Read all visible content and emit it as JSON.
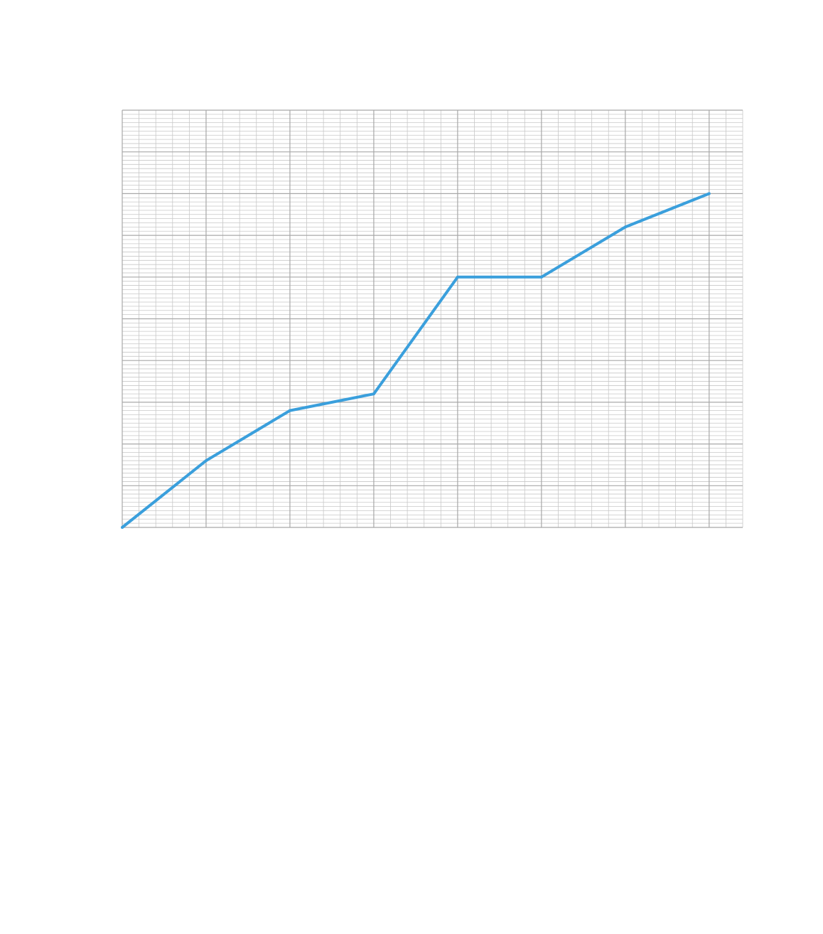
{
  "chart_data": {
    "type": "line",
    "title": "",
    "xlabel": "",
    "ylabel": "",
    "x": [
      0,
      5,
      10,
      15,
      20,
      25,
      30,
      35
    ],
    "series": [
      {
        "values": [
          0,
          40,
          70,
          80,
          150,
          150,
          180,
          200
        ]
      }
    ],
    "xlim": [
      0,
      37
    ],
    "ylim": [
      0,
      250
    ],
    "grid": true,
    "x_minor_ticks_per_major": 5,
    "y_minor_ticks_per_major": 10,
    "colors": {
      "line": "#3a9fdc",
      "grid_major": "#a8a8a8",
      "grid_minor": "#c8c8c8",
      "background": "#ffffff"
    }
  }
}
